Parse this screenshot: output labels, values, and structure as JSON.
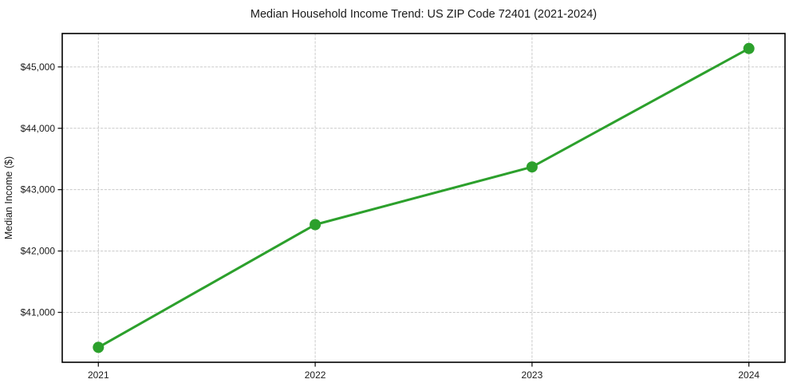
{
  "chart_data": {
    "type": "line",
    "title": "Median Household Income Trend: US ZIP Code 72401 (2021-2024)",
    "xlabel": "",
    "ylabel": "Median Income ($)",
    "categories": [
      "2021",
      "2022",
      "2023",
      "2024"
    ],
    "series": [
      {
        "name": "Median Household Income",
        "values": [
          40430,
          42430,
          43370,
          45300
        ]
      }
    ],
    "y_ticks": [
      41000,
      42000,
      43000,
      44000,
      45000
    ],
    "y_tick_labels": [
      "$41,000",
      "$42,000",
      "$43,000",
      "$44,000",
      "$45,000"
    ],
    "ylim": [
      40187,
      45544
    ],
    "x_margin_frac": 0.05,
    "grid": true,
    "grid_style": "dashed",
    "legend_position": "none",
    "colors": {
      "line": "#2ca02c",
      "marker": "#2ca02c",
      "grid": "#cacaca",
      "spine": "#000000",
      "tick": "#1a1a1a",
      "text": "#1a1a1a",
      "background": "#ffffff"
    }
  }
}
